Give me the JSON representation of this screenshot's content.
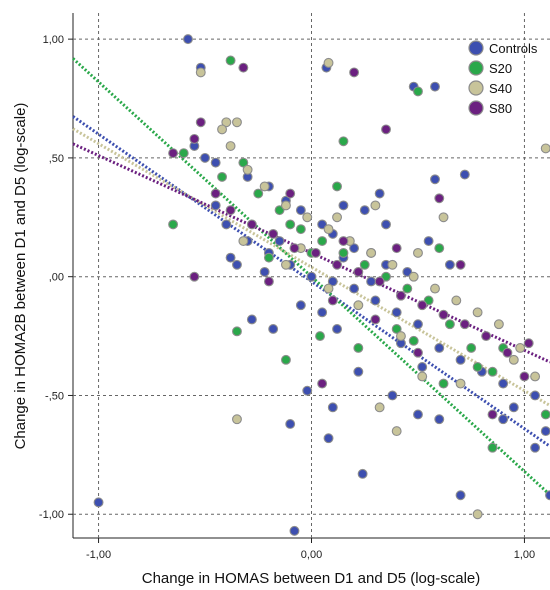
{
  "chart_data": {
    "type": "scatter",
    "title": "",
    "xlabel": "Change in HOMAS between D1 and D5 (log-scale)",
    "ylabel": "Change in HOMA2B between D1 and D5 (log-scale)",
    "xlim": [
      -1.12,
      1.12
    ],
    "ylim": [
      -1.1,
      1.11
    ],
    "x_ticks": [
      -1.0,
      0.0,
      1.0
    ],
    "x_tick_labels": [
      "-1,00",
      "0,00",
      "1,00"
    ],
    "y_ticks": [
      1.0,
      0.5,
      0.0,
      -0.5,
      -1.0
    ],
    "y_tick_labels": [
      "1,00",
      ",50",
      ",00",
      "-,50",
      "-1,00"
    ],
    "grid": true,
    "legend_position": "top-right",
    "series": [
      {
        "name": "Controls",
        "color": "#3d4fb0",
        "trend": {
          "slope": -0.62,
          "intercept": -0.02
        },
        "points": [
          [
            -0.58,
            1.0
          ],
          [
            -0.52,
            0.88
          ],
          [
            0.07,
            0.88
          ],
          [
            0.48,
            0.8
          ],
          [
            0.58,
            0.8
          ],
          [
            -0.55,
            0.55
          ],
          [
            -0.5,
            0.5
          ],
          [
            -0.45,
            0.48
          ],
          [
            -0.3,
            0.42
          ],
          [
            -0.2,
            0.38
          ],
          [
            -0.12,
            0.32
          ],
          [
            -0.05,
            0.28
          ],
          [
            0.05,
            0.22
          ],
          [
            0.1,
            0.18
          ],
          [
            0.2,
            0.12
          ],
          [
            0.28,
            0.1
          ],
          [
            0.35,
            0.05
          ],
          [
            0.45,
            0.02
          ],
          [
            -0.4,
            0.22
          ],
          [
            -0.3,
            0.15
          ],
          [
            -0.2,
            0.1
          ],
          [
            -0.1,
            0.05
          ],
          [
            0.0,
            0.0
          ],
          [
            0.1,
            -0.02
          ],
          [
            0.2,
            -0.05
          ],
          [
            0.3,
            -0.1
          ],
          [
            0.4,
            -0.15
          ],
          [
            0.5,
            -0.2
          ],
          [
            0.6,
            -0.3
          ],
          [
            0.7,
            -0.35
          ],
          [
            0.8,
            -0.4
          ],
          [
            0.9,
            -0.45
          ],
          [
            0.95,
            -0.55
          ],
          [
            1.05,
            -0.5
          ],
          [
            1.1,
            -0.65
          ],
          [
            1.12,
            -0.92
          ],
          [
            0.7,
            -0.92
          ],
          [
            0.5,
            -0.58
          ],
          [
            0.6,
            -0.6
          ],
          [
            0.38,
            -0.5
          ],
          [
            0.22,
            -0.4
          ],
          [
            0.1,
            -0.55
          ],
          [
            0.08,
            -0.68
          ],
          [
            0.24,
            -0.83
          ],
          [
            -0.1,
            -0.62
          ],
          [
            -0.02,
            -0.48
          ],
          [
            -0.08,
            -1.07
          ],
          [
            -1.0,
            -0.95
          ],
          [
            -0.28,
            -0.18
          ],
          [
            -0.18,
            -0.22
          ],
          [
            -0.35,
            0.05
          ],
          [
            -0.22,
            0.02
          ],
          [
            0.15,
            0.3
          ],
          [
            0.25,
            0.28
          ],
          [
            0.35,
            0.22
          ],
          [
            0.55,
            0.15
          ],
          [
            0.65,
            0.05
          ],
          [
            0.72,
            0.43
          ],
          [
            0.58,
            0.41
          ],
          [
            0.32,
            0.35
          ],
          [
            -0.05,
            -0.12
          ],
          [
            0.05,
            -0.15
          ],
          [
            0.12,
            -0.22
          ],
          [
            0.42,
            -0.28
          ],
          [
            0.52,
            -0.38
          ],
          [
            0.9,
            -0.6
          ],
          [
            1.05,
            -0.72
          ],
          [
            -0.45,
            0.3
          ],
          [
            -0.38,
            0.08
          ],
          [
            0.15,
            0.08
          ],
          [
            0.28,
            -0.02
          ],
          [
            -0.15,
            0.15
          ]
        ]
      },
      {
        "name": "S20",
        "color": "#2aa84a",
        "trend": {
          "slope": -0.82,
          "intercept": 0.0
        },
        "points": [
          [
            -0.38,
            0.91
          ],
          [
            0.5,
            0.78
          ],
          [
            -0.6,
            0.52
          ],
          [
            -0.42,
            0.42
          ],
          [
            -0.32,
            0.48
          ],
          [
            -0.25,
            0.35
          ],
          [
            -0.15,
            0.28
          ],
          [
            -0.05,
            0.2
          ],
          [
            0.05,
            0.15
          ],
          [
            0.15,
            0.1
          ],
          [
            0.25,
            0.05
          ],
          [
            0.35,
            0.0
          ],
          [
            0.45,
            -0.05
          ],
          [
            0.55,
            -0.1
          ],
          [
            0.65,
            -0.2
          ],
          [
            0.75,
            -0.3
          ],
          [
            0.85,
            -0.4
          ],
          [
            1.1,
            -0.58
          ],
          [
            -0.65,
            0.22
          ],
          [
            -0.35,
            -0.23
          ],
          [
            -0.1,
            0.22
          ],
          [
            0.12,
            0.38
          ],
          [
            0.48,
            -0.27
          ],
          [
            0.62,
            -0.45
          ],
          [
            0.78,
            -0.38
          ],
          [
            0.85,
            -0.72
          ],
          [
            -0.12,
            -0.35
          ],
          [
            0.04,
            -0.25
          ],
          [
            0.22,
            -0.3
          ],
          [
            0.4,
            -0.22
          ],
          [
            0.15,
            0.57
          ],
          [
            0.6,
            0.12
          ],
          [
            0.9,
            -0.3
          ],
          [
            -0.2,
            0.08
          ],
          [
            0.0,
            0.1
          ]
        ]
      },
      {
        "name": "S40",
        "color": "#c8c49a",
        "trend": {
          "slope": -0.52,
          "intercept": 0.04
        },
        "points": [
          [
            -0.52,
            0.86
          ],
          [
            -0.4,
            0.65
          ],
          [
            -0.35,
            0.65
          ],
          [
            -0.42,
            0.62
          ],
          [
            -0.38,
            0.55
          ],
          [
            0.08,
            0.9
          ],
          [
            -0.3,
            0.45
          ],
          [
            -0.22,
            0.38
          ],
          [
            -0.12,
            0.3
          ],
          [
            -0.02,
            0.25
          ],
          [
            0.08,
            0.2
          ],
          [
            0.18,
            0.15
          ],
          [
            0.28,
            0.1
          ],
          [
            0.38,
            0.05
          ],
          [
            0.48,
            0.0
          ],
          [
            0.58,
            -0.05
          ],
          [
            0.68,
            -0.1
          ],
          [
            0.78,
            -0.15
          ],
          [
            0.88,
            -0.2
          ],
          [
            0.98,
            -0.3
          ],
          [
            1.05,
            -0.42
          ],
          [
            -0.32,
            0.15
          ],
          [
            -0.12,
            0.05
          ],
          [
            0.08,
            -0.05
          ],
          [
            0.22,
            -0.12
          ],
          [
            0.42,
            -0.25
          ],
          [
            0.52,
            -0.42
          ],
          [
            0.32,
            -0.55
          ],
          [
            0.4,
            -0.65
          ],
          [
            -0.35,
            -0.6
          ],
          [
            0.78,
            -1.0
          ],
          [
            1.1,
            0.54
          ],
          [
            0.62,
            0.25
          ],
          [
            0.5,
            0.1
          ],
          [
            -0.05,
            0.12
          ],
          [
            0.12,
            0.25
          ],
          [
            0.3,
            0.3
          ],
          [
            0.7,
            -0.45
          ],
          [
            0.95,
            -0.35
          ]
        ]
      },
      {
        "name": "S80",
        "color": "#6b2080",
        "trend": {
          "slope": -0.41,
          "intercept": 0.1
        },
        "points": [
          [
            -0.32,
            0.88
          ],
          [
            -0.52,
            0.65
          ],
          [
            -0.65,
            0.52
          ],
          [
            -0.55,
            0.58
          ],
          [
            -0.45,
            0.35
          ],
          [
            -0.38,
            0.28
          ],
          [
            -0.28,
            0.22
          ],
          [
            -0.18,
            0.18
          ],
          [
            -0.08,
            0.12
          ],
          [
            0.02,
            0.1
          ],
          [
            0.12,
            0.05
          ],
          [
            0.22,
            0.02
          ],
          [
            0.32,
            -0.02
          ],
          [
            0.42,
            -0.08
          ],
          [
            0.52,
            -0.12
          ],
          [
            0.62,
            -0.16
          ],
          [
            0.72,
            -0.2
          ],
          [
            0.82,
            -0.25
          ],
          [
            0.92,
            -0.32
          ],
          [
            1.02,
            -0.28
          ],
          [
            -0.55,
            0.0
          ],
          [
            0.2,
            0.86
          ],
          [
            0.35,
            0.62
          ],
          [
            0.6,
            0.33
          ],
          [
            0.1,
            -0.1
          ],
          [
            0.3,
            -0.18
          ],
          [
            0.5,
            -0.32
          ],
          [
            0.85,
            -0.58
          ],
          [
            1.0,
            -0.42
          ],
          [
            0.05,
            -0.45
          ],
          [
            -0.2,
            -0.02
          ],
          [
            0.15,
            0.15
          ],
          [
            0.4,
            0.12
          ],
          [
            0.7,
            0.05
          ],
          [
            -0.1,
            0.35
          ]
        ]
      }
    ]
  }
}
